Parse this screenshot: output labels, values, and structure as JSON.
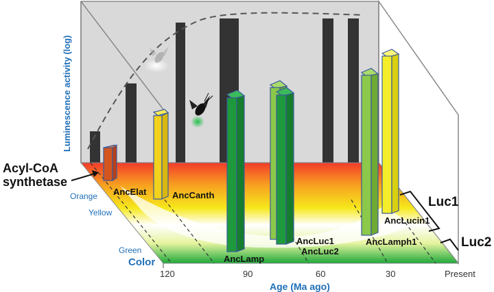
{
  "axes": {
    "y_label": "Luminescence activity (log)",
    "x_label": "Age (Ma ago)",
    "z_label": "Color",
    "x_ticks": [
      "120",
      "90",
      "60",
      "30",
      "Present"
    ],
    "color_ticks": [
      "Orange",
      "Yellow",
      "Green"
    ]
  },
  "annotations": {
    "acyl_line1": "Acyl-CoA",
    "acyl_line2": "synthetase",
    "luc1": "Luc1",
    "luc2": "Luc2"
  },
  "bars": [
    {
      "label": "AncElat",
      "color": "#d4551e"
    },
    {
      "label": "AncCanth",
      "color": "#f2d21c"
    },
    {
      "label": "AncLamp",
      "color": "#1e9a3c"
    },
    {
      "label": "AncLuc1",
      "color": "#8cc84a"
    },
    {
      "label": "AncLuc2",
      "color": "#1e9a3c"
    },
    {
      "label": "AncLamph1",
      "color": "#8cc84a"
    },
    {
      "label": "AncLucin1",
      "color": "#f4ee2a"
    }
  ],
  "colors": {
    "axis_text": "#1f6fb8",
    "back_panel": "#d9d9d9",
    "dark_bar": "#333333"
  }
}
